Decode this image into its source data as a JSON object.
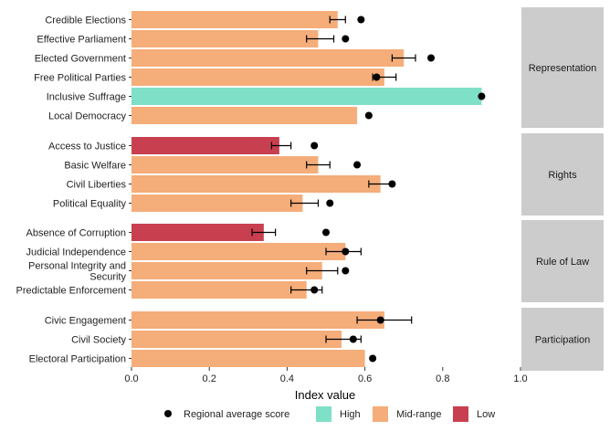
{
  "chart_data": {
    "type": "bar",
    "orientation": "horizontal",
    "xlabel": "Index value",
    "xlim": [
      0,
      1
    ],
    "xticks": [
      0.0,
      0.2,
      0.4,
      0.6,
      0.8,
      1.0
    ],
    "xtick_labels": [
      "0.0",
      "0.2",
      "0.4",
      "0.6",
      "0.8",
      "1.0"
    ],
    "grid": false,
    "legend_position": "bottom",
    "colors": {
      "High": "#7fe0c8",
      "Mid-range": "#f5ad7a",
      "Low": "#c8404f",
      "point": "#000000",
      "strip": "#cccccc"
    },
    "legend": {
      "point_label": "Regional average score",
      "items": [
        {
          "label": "High",
          "color": "#7fe0c8"
        },
        {
          "label": "Mid-range",
          "color": "#f5ad7a"
        },
        {
          "label": "Low",
          "color": "#c8404f"
        }
      ]
    },
    "facets": [
      {
        "name": "Representation",
        "rows": [
          {
            "label": "Credible Elections",
            "value": 0.53,
            "category": "Mid-range",
            "err": [
              0.51,
              0.55
            ],
            "avg": 0.59
          },
          {
            "label": "Effective Parliament",
            "value": 0.48,
            "category": "Mid-range",
            "err": [
              0.45,
              0.52
            ],
            "avg": 0.55
          },
          {
            "label": "Elected Government",
            "value": 0.7,
            "category": "Mid-range",
            "err": [
              0.67,
              0.73
            ],
            "avg": 0.77
          },
          {
            "label": "Free Political Parties",
            "value": 0.65,
            "category": "Mid-range",
            "err": [
              0.62,
              0.68
            ],
            "avg": 0.63
          },
          {
            "label": "Inclusive Suffrage",
            "value": 0.9,
            "category": "High",
            "err": null,
            "avg": 0.9
          },
          {
            "label": "Local Democracy",
            "value": 0.58,
            "category": "Mid-range",
            "err": null,
            "avg": 0.61
          }
        ]
      },
      {
        "name": "Rights",
        "rows": [
          {
            "label": "Access to Justice",
            "value": 0.38,
            "category": "Low",
            "err": [
              0.36,
              0.41
            ],
            "avg": 0.47
          },
          {
            "label": "Basic Welfare",
            "value": 0.48,
            "category": "Mid-range",
            "err": [
              0.45,
              0.51
            ],
            "avg": 0.58
          },
          {
            "label": "Civil Liberties",
            "value": 0.64,
            "category": "Mid-range",
            "err": [
              0.61,
              0.67
            ],
            "avg": 0.67
          },
          {
            "label": "Political Equality",
            "value": 0.44,
            "category": "Mid-range",
            "err": [
              0.41,
              0.48
            ],
            "avg": 0.51
          }
        ]
      },
      {
        "name": "Rule of Law",
        "rows": [
          {
            "label": "Absence of Corruption",
            "value": 0.34,
            "category": "Low",
            "err": [
              0.31,
              0.37
            ],
            "avg": 0.5
          },
          {
            "label": "Judicial Independence",
            "value": 0.55,
            "category": "Mid-range",
            "err": [
              0.5,
              0.59
            ],
            "avg": 0.55
          },
          {
            "label": "Personal Integrity and Security",
            "label_lines": [
              "Personal Integrity and",
              "Security"
            ],
            "value": 0.49,
            "category": "Mid-range",
            "err": [
              0.45,
              0.53
            ],
            "avg": 0.55
          },
          {
            "label": "Predictable Enforcement",
            "value": 0.45,
            "category": "Mid-range",
            "err": [
              0.41,
              0.49
            ],
            "avg": 0.47
          }
        ]
      },
      {
        "name": "Participation",
        "rows": [
          {
            "label": "Civic Engagement",
            "value": 0.65,
            "category": "Mid-range",
            "err": [
              0.58,
              0.72
            ],
            "avg": 0.64
          },
          {
            "label": "Civil Society",
            "value": 0.54,
            "category": "Mid-range",
            "err": [
              0.5,
              0.59
            ],
            "avg": 0.57
          },
          {
            "label": "Electoral Participation",
            "value": 0.6,
            "category": "Mid-range",
            "err": null,
            "avg": 0.62
          }
        ]
      }
    ]
  }
}
